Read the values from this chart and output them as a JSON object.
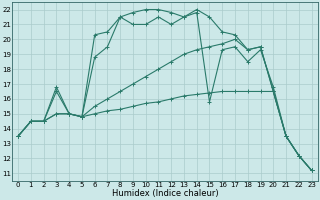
{
  "title": "",
  "xlabel": "Humidex (Indice chaleur)",
  "xlim": [
    -0.5,
    23.5
  ],
  "ylim": [
    10.5,
    22.5
  ],
  "xticks": [
    0,
    1,
    2,
    3,
    4,
    5,
    6,
    7,
    8,
    9,
    10,
    11,
    12,
    13,
    14,
    15,
    16,
    17,
    18,
    19,
    20,
    21,
    22,
    23
  ],
  "yticks": [
    11,
    12,
    13,
    14,
    15,
    16,
    17,
    18,
    19,
    20,
    21,
    22
  ],
  "background_color": "#cce8e8",
  "grid_color": "#aacccc",
  "line_color": "#2a7a6a",
  "lines": [
    [
      13.5,
      14.5,
      14.5,
      16.5,
      15.0,
      14.8,
      20.3,
      20.5,
      21.5,
      21.8,
      22.0,
      22.0,
      21.8,
      21.5,
      22.0,
      21.5,
      20.5,
      20.3,
      19.3,
      19.5,
      16.5,
      13.5,
      12.2,
      11.2
    ],
    [
      13.5,
      14.5,
      14.5,
      16.8,
      15.0,
      14.8,
      18.8,
      19.5,
      21.5,
      21.0,
      21.0,
      21.5,
      21.0,
      21.5,
      21.8,
      15.8,
      19.3,
      19.5,
      18.5,
      19.3,
      16.8,
      13.5,
      12.2,
      11.2
    ],
    [
      13.5,
      14.5,
      14.5,
      15.0,
      15.0,
      14.8,
      15.5,
      16.0,
      16.5,
      17.0,
      17.5,
      18.0,
      18.5,
      19.0,
      19.3,
      19.5,
      19.7,
      20.0,
      19.3,
      19.5,
      16.5,
      13.5,
      12.2,
      11.2
    ],
    [
      13.5,
      14.5,
      14.5,
      15.0,
      15.0,
      14.8,
      15.0,
      15.2,
      15.3,
      15.5,
      15.7,
      15.8,
      16.0,
      16.2,
      16.3,
      16.4,
      16.5,
      16.5,
      16.5,
      16.5,
      16.5,
      13.5,
      12.2,
      11.2
    ]
  ]
}
